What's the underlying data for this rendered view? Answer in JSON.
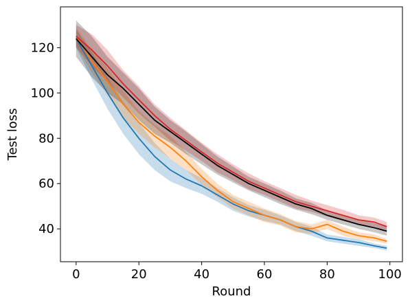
{
  "chart_data": {
    "type": "line",
    "title": "",
    "xlabel": "Round",
    "ylabel": "Test loss",
    "xlim": [
      -5,
      104
    ],
    "ylim": [
      25.5,
      138
    ],
    "x_ticks": [
      0,
      20,
      40,
      60,
      80,
      100
    ],
    "y_ticks": [
      40,
      60,
      80,
      100,
      120
    ],
    "grid": false,
    "legend": "none",
    "x": [
      0,
      5,
      10,
      15,
      20,
      25,
      30,
      35,
      40,
      45,
      50,
      55,
      60,
      65,
      70,
      75,
      80,
      85,
      90,
      95,
      99
    ],
    "series": [
      {
        "color": "#1f77b4",
        "values": [
          124,
          112,
          100,
          89,
          80,
          72,
          66,
          62,
          59,
          55,
          51,
          48,
          46,
          44,
          41,
          39,
          36,
          35,
          34,
          32.5,
          31.5
        ],
        "band": [
          4,
          6,
          7,
          7,
          7,
          6,
          5,
          4,
          3.5,
          3,
          3,
          2.5,
          2.5,
          2,
          2,
          2,
          1.5,
          1.5,
          1.5,
          1,
          1
        ]
      },
      {
        "color": "#ff7f0e",
        "values": [
          125,
          114,
          105,
          95,
          87,
          81,
          76,
          70,
          63,
          57,
          52,
          49,
          46,
          44,
          41,
          40,
          42,
          39,
          37,
          36,
          34.5
        ],
        "band": [
          4,
          5,
          6,
          6,
          5,
          5,
          5,
          4,
          3.5,
          3,
          3,
          3,
          3,
          2.5,
          2.5,
          2,
          2,
          2,
          1.5,
          1.5,
          1
        ]
      },
      {
        "color": "#d62728",
        "values": [
          125,
          119,
          112,
          104,
          97,
          90,
          84,
          79,
          74,
          69,
          65,
          61,
          58,
          55,
          52,
          50,
          48,
          46,
          44,
          43,
          41
        ],
        "band": [
          5,
          7,
          7,
          6,
          6,
          5,
          5,
          4.5,
          4,
          4,
          3.5,
          3.5,
          3,
          3,
          3,
          2.5,
          2.5,
          2.5,
          2,
          2,
          2
        ]
      },
      {
        "color": "#000000",
        "values": [
          124,
          116,
          108,
          102,
          95,
          88,
          83,
          78,
          73,
          68,
          64,
          60,
          57,
          54,
          51,
          49,
          46,
          44,
          42,
          40.5,
          39
        ],
        "band": [
          8,
          9,
          8,
          7,
          7,
          6,
          5,
          5,
          4.5,
          4,
          3.5,
          3,
          3,
          3,
          2.5,
          2.5,
          2,
          2,
          2,
          2,
          2
        ]
      }
    ]
  }
}
